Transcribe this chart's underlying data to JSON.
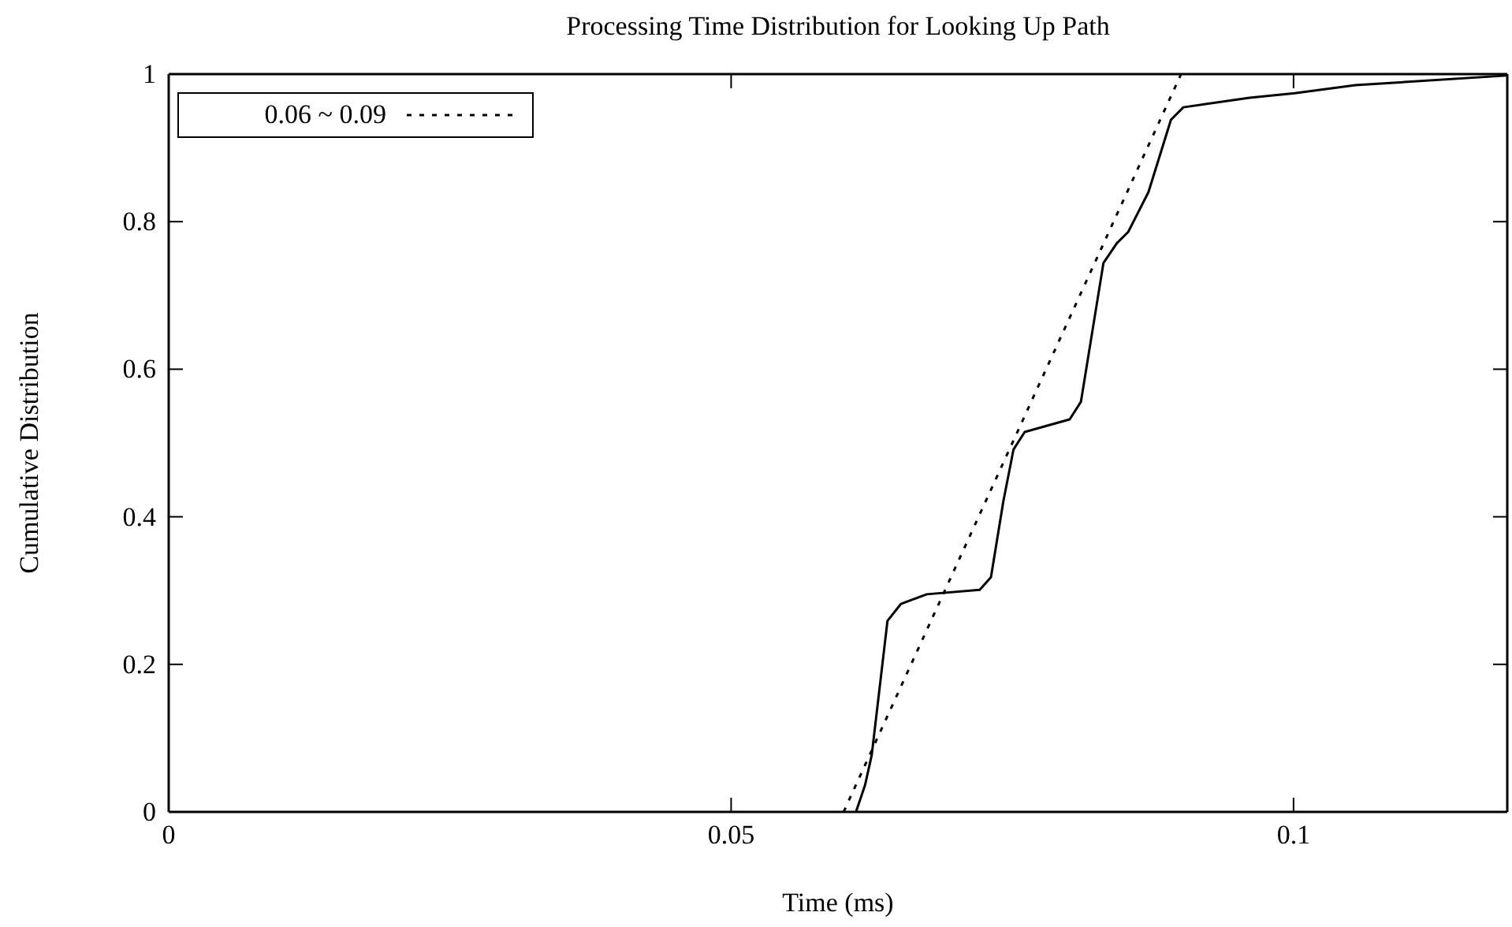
{
  "chart_data": {
    "type": "line",
    "title": "Processing Time Distribution for Looking Up Path",
    "xlabel": "Time (ms)",
    "ylabel": "Cumulative Distribution",
    "xlim": [
      0,
      0.119
    ],
    "xticks": [
      0,
      0.05,
      0.1
    ],
    "ylim": [
      0,
      1
    ],
    "yticks": [
      0,
      0.2,
      0.4,
      0.6,
      0.8,
      1
    ],
    "grid": false,
    "legend": "top left",
    "marker": "none",
    "series": [
      {
        "color": "#000000",
        "line_style": "solid",
        "x": [
          0.0611,
          0.0619,
          0.0625,
          0.0639,
          0.0651,
          0.0674,
          0.0721,
          0.0731,
          0.0742,
          0.0751,
          0.0761,
          0.0801,
          0.0811,
          0.0831,
          0.0843,
          0.0853,
          0.0871,
          0.0891,
          0.0902,
          0.0961,
          0.1001,
          0.1055,
          0.1189
        ],
        "values": [
          0,
          0.036,
          0.077,
          0.259,
          0.282,
          0.295,
          0.301,
          0.318,
          0.421,
          0.491,
          0.515,
          0.532,
          0.556,
          0.744,
          0.771,
          0.786,
          0.84,
          0.938,
          0.955,
          0.968,
          0.974,
          0.985,
          0.998
        ]
      },
      {
        "name": "0.06 ~ 0.09",
        "color": "#000000",
        "line_style": "dotted",
        "x": [
          0.06,
          0.09
        ],
        "values": [
          0,
          1
        ]
      }
    ]
  }
}
